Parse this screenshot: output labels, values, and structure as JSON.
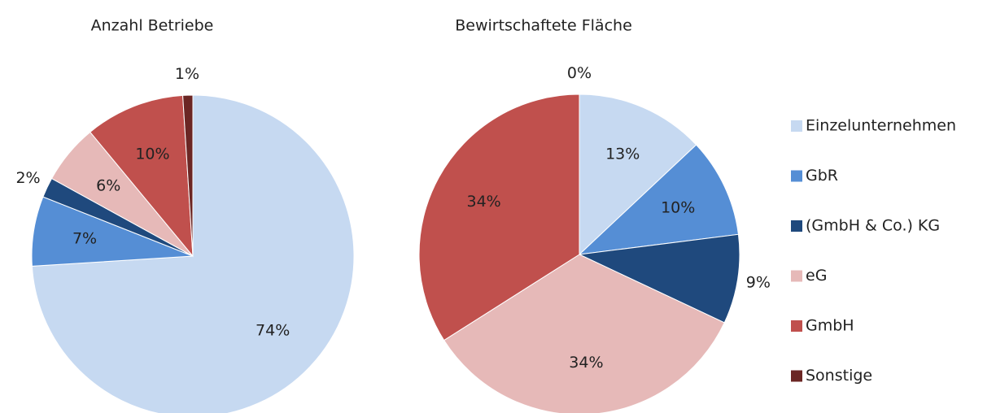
{
  "legend": {
    "labels": [
      "Einzelunternehmen",
      "GbR",
      "(GmbH & Co.) KG",
      "eG",
      "GmbH",
      "Sonstige"
    ],
    "colors": [
      "#c6d9f1",
      "#558ed5",
      "#1f497d",
      "#e6b9b8",
      "#c0504d",
      "#6b2624"
    ]
  },
  "chart_data": [
    {
      "type": "pie",
      "title": "Anzahl Betriebe",
      "values": [
        74,
        7,
        2,
        6,
        10,
        1
      ],
      "value_labels": [
        "74%",
        "7%",
        "2%",
        "6%",
        "10%",
        "1%"
      ]
    },
    {
      "type": "pie",
      "title": "Bewirtschaftete Fläche",
      "values": [
        13,
        10,
        9,
        34,
        34,
        0
      ],
      "value_labels": [
        "13%",
        "10%",
        "9%",
        "34%",
        "34%",
        "0%"
      ]
    }
  ]
}
